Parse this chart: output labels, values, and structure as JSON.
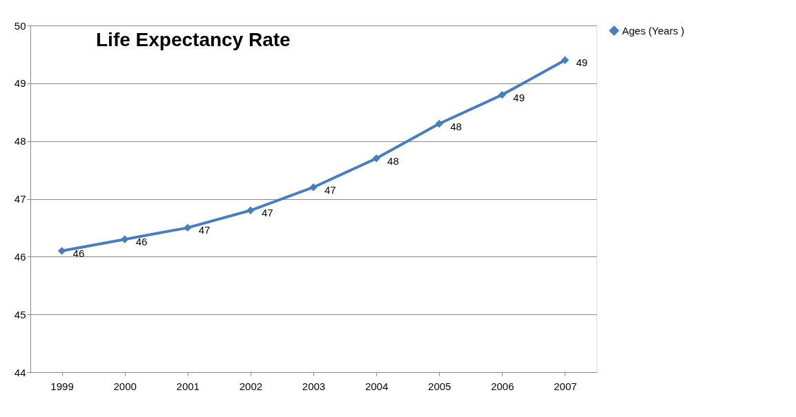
{
  "chart_data": {
    "type": "line",
    "title": "Life Expectancy Rate",
    "categories": [
      "1999",
      "2000",
      "2001",
      "2002",
      "2003",
      "2004",
      "2005",
      "2006",
      "2007"
    ],
    "series": [
      {
        "name": "Ages (Years )",
        "color": "#4a7ebb",
        "values": [
          46.1,
          46.3,
          46.5,
          46.8,
          47.2,
          47.7,
          48.3,
          48.8,
          49.4
        ],
        "value_labels": [
          "46",
          "46",
          "47",
          "47",
          "47",
          "48",
          "48",
          "49",
          "49"
        ]
      }
    ],
    "ylim": [
      44,
      50
    ],
    "yticks": [
      44,
      45,
      46,
      47,
      48,
      49,
      50
    ],
    "grid": "y",
    "legend": "right",
    "marker": "diamond",
    "line_style": "solid"
  }
}
